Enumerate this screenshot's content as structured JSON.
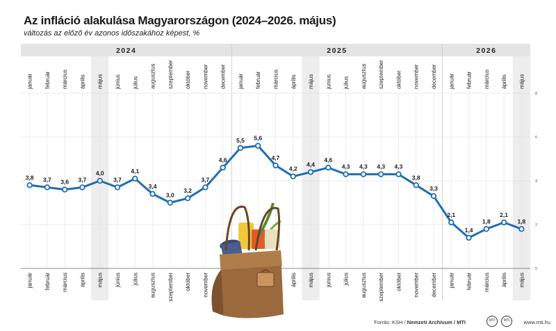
{
  "title": "Az infláció alakulása Magyarországon (2024–2026. május)",
  "subtitle": "változás az előző év azonos időszakához képest, %",
  "footer": {
    "source_prefix": "Forrás: KSH / ",
    "source_bold": "Nemzeti Archívum / MTI",
    "site": "www.mti.hu",
    "logo1": "MTI",
    "logo2": "MTI"
  },
  "colors": {
    "line": "#1f6db5",
    "band": "#e4e4e4",
    "highlight": "#ededed",
    "bag": "#9b6a3c"
  },
  "icons": [
    "shopping-bag-icon"
  ],
  "chart_data": {
    "type": "line",
    "years": [
      {
        "label": "2024",
        "months": 12
      },
      {
        "label": "2025",
        "months": 12
      },
      {
        "label": "2026",
        "months": 5
      }
    ],
    "categories": [
      "január",
      "február",
      "március",
      "április",
      "május",
      "június",
      "július",
      "augusztus",
      "szeptember",
      "október",
      "november",
      "december",
      "január",
      "február",
      "március",
      "április",
      "május",
      "június",
      "július",
      "augusztus",
      "szeptember",
      "október",
      "november",
      "december",
      "január",
      "február",
      "március",
      "április",
      "május"
    ],
    "series": [
      {
        "values": [
          3.8,
          3.7,
          3.6,
          3.7,
          4.0,
          3.7,
          4.1,
          3.4,
          3.0,
          3.2,
          3.7,
          4.6,
          5.5,
          5.6,
          4.7,
          4.2,
          4.4,
          4.6,
          4.3,
          4.3,
          4.3,
          4.3,
          3.8,
          3.3,
          2.1,
          1.4,
          1.8,
          2.1,
          1.8
        ],
        "labels": [
          "3,8",
          "3,7",
          "3,6",
          "3,7",
          "4,0",
          "3,7",
          "4,1",
          "3,4",
          "3,0",
          "3,2",
          "3,7",
          "4,6",
          "5,5",
          "5,6",
          "4,7",
          "4,2",
          "4,4",
          "4,6",
          "4,3",
          "4,3",
          "4,3",
          "4,3",
          "3,8",
          "3,3",
          "2,1",
          "1,4",
          "1,8",
          "2,1",
          "1,8"
        ]
      }
    ],
    "highlighted_months": [
      "május"
    ],
    "yticks": [
      "0",
      "2",
      "4",
      "6",
      "8"
    ],
    "ylim": [
      0,
      8
    ],
    "grid": true
  }
}
